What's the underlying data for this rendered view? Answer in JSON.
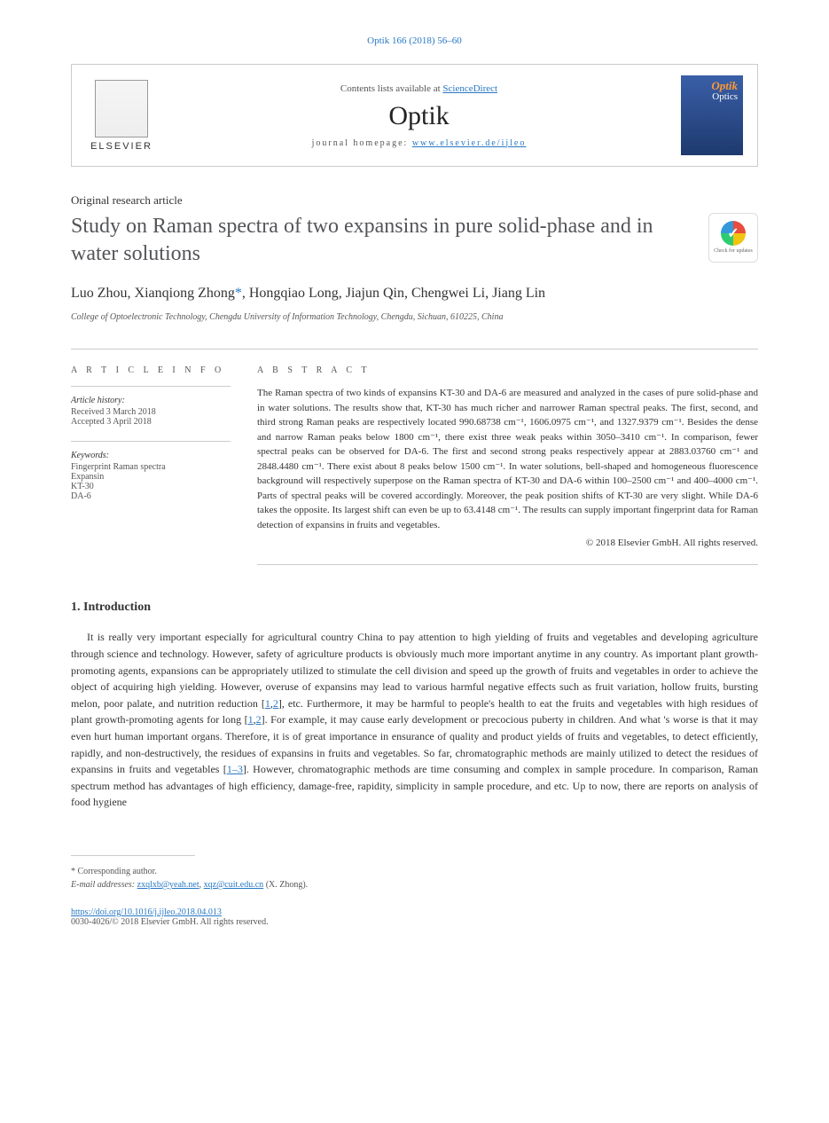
{
  "citation": "Optik 166 (2018) 56–60",
  "header": {
    "contents_prefix": "Contents lists available at ",
    "contents_link": "ScienceDirect",
    "journal_name": "Optik",
    "homepage_prefix": "journal homepage: ",
    "homepage_url": "www.elsevier.de/ijleo",
    "publisher_name": "ELSEVIER",
    "cover_title": "Optik",
    "cover_subtitle": "Optics"
  },
  "article": {
    "type": "Original research article",
    "title": "Study on Raman spectra of two expansins in pure solid-phase and in water solutions",
    "authors_pre": "Luo Zhou, Xianqiong Zhong",
    "corr_mark": "*",
    "authors_post": ", Hongqiao Long, Jiajun Qin, Chengwei Li, Jiang Lin",
    "affiliation": "College of Optoelectronic Technology, Chengdu University of Information Technology, Chengdu, Sichuan, 610225, China",
    "crossmark_label": "Check for updates"
  },
  "info": {
    "section_label": "A R T I C L E   I N F O",
    "history_heading": "Article history:",
    "received": "Received 3 March 2018",
    "accepted": "Accepted 3 April 2018",
    "keywords_heading": "Keywords:",
    "keywords": [
      "Fingerprint Raman spectra",
      "Expansin",
      "KT-30",
      "DA-6"
    ]
  },
  "abstract": {
    "section_label": "A B S T R A C T",
    "text": "The Raman spectra of two kinds of expansins KT-30 and DA-6 are measured and analyzed in the cases of pure solid-phase and in water solutions. The results show that, KT-30 has much richer and narrower Raman spectral peaks. The first, second, and third strong Raman peaks are respectively located 990.68738 cm⁻¹, 1606.0975 cm⁻¹, and 1327.9379 cm⁻¹. Besides the dense and narrow Raman peaks below 1800 cm⁻¹, there exist three weak peaks within 3050–3410 cm⁻¹. In comparison, fewer spectral peaks can be observed for DA-6. The first and second strong peaks respectively appear at 2883.03760 cm⁻¹ and 2848.4480 cm⁻¹. There exist about 8 peaks below 1500 cm⁻¹. In water solutions, bell-shaped and homogeneous fluorescence background will respectively superpose on the Raman spectra of KT-30 and DA-6 within 100–2500 cm⁻¹ and 400–4000 cm⁻¹. Parts of spectral peaks will be covered accordingly. Moreover, the peak position shifts of KT-30 are very slight. While DA-6 takes the opposite. Its largest shift can even be up to 63.4148 cm⁻¹. The results can supply important fingerprint data for Raman detection of expansins in fruits and vegetables.",
    "copyright": "© 2018 Elsevier GmbH. All rights reserved."
  },
  "intro": {
    "heading": "1. Introduction",
    "para": "It is really very important especially for agricultural country China to pay attention to high yielding of fruits and vegetables and developing agriculture through science and technology. However, safety of agriculture products is obviously much more important anytime in any country. As important plant growth-promoting agents, expansions can be appropriately utilized to stimulate the cell division and speed up the growth of fruits and vegetables in order to achieve the object of acquiring high yielding. However, overuse of expansins may lead to various harmful negative effects such as fruit variation, hollow fruits, bursting melon, poor palate, and nutrition reduction [",
    "ref1": "1",
    "ref2": "2",
    "para2": "], etc. Furthermore, it may be harmful to people's health to eat the fruits and vegetables with high residues of plant growth-promoting agents for long [",
    "para3": "]. For example, it may cause early development or precocious puberty in children. And what 's worse is that it may even hurt human important organs. Therefore, it is of great importance in ensurance of quality and product yields of fruits and vegetables, to detect efficiently, rapidly, and non-destructively, the residues of expansins in fruits and vegetables. So far, chromatographic methods are mainly utilized to detect the residues of expansins in fruits and vegetables [",
    "ref3": "1–3",
    "para4": "]. However, chromatographic methods are time consuming and complex in sample procedure. In comparison, Raman spectrum method has advantages of high efficiency, damage-free, rapidity, simplicity in sample procedure, and etc. Up to now, there are reports on analysis of food hygiene"
  },
  "footer": {
    "corr_label": "* Corresponding author.",
    "email_label": "E-mail addresses: ",
    "email1": "zxqlxb@yeah.net",
    "email_sep": ", ",
    "email2": "xqz@cuit.edu.cn",
    "email_author": " (X. Zhong).",
    "doi": "https://doi.org/10.1016/j.ijleo.2018.04.013",
    "issn_line": "0030-4026/© 2018 Elsevier GmbH. All rights reserved."
  },
  "colors": {
    "link": "#2878c4",
    "text": "#333333",
    "muted": "#555555",
    "border": "#cccccc"
  }
}
